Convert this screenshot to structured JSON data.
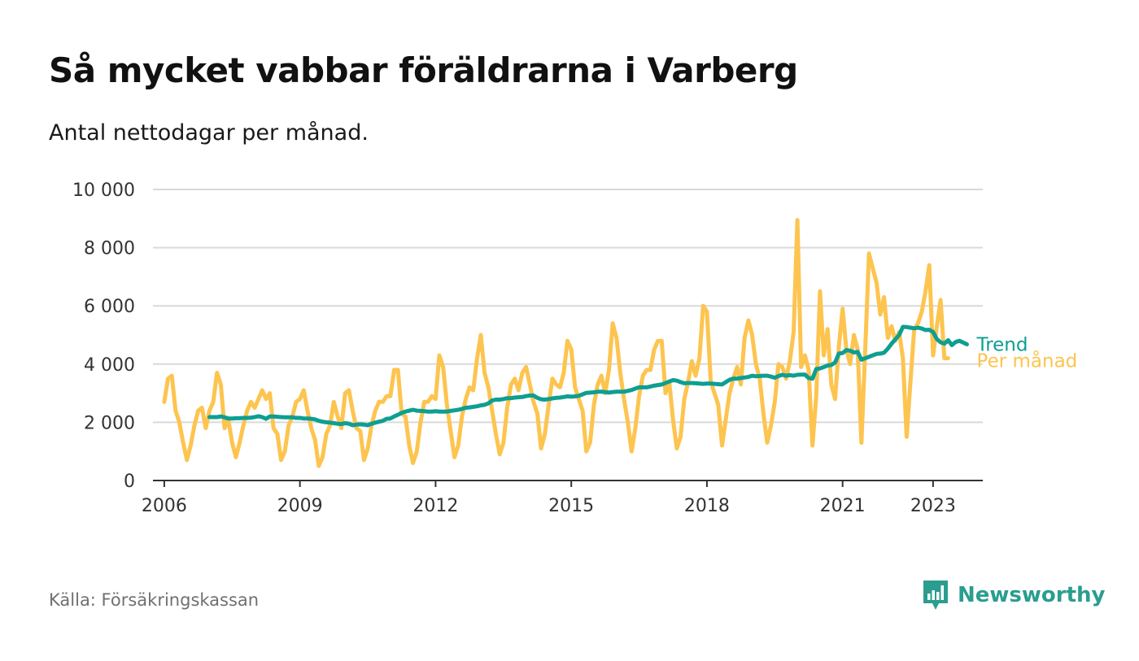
{
  "header": {
    "title": "Så mycket vabbar föräldrarna i Varberg",
    "subtitle": "Antal nettodagar per månad."
  },
  "footer": {
    "source": "Källa: Försäkringskassan",
    "brand": "Newsworthy"
  },
  "colors": {
    "monthly": "#fdc44f",
    "trend": "#0e9e92",
    "grid": "#d9d9d9",
    "axis": "#333333",
    "brand": "#2a9d8f"
  },
  "chart_data": {
    "type": "line",
    "title": "Så mycket vabbar föräldrarna i Varberg",
    "subtitle": "Antal nettodagar per månad.",
    "xlabel": "",
    "ylabel": "",
    "ylim": [
      0,
      10000
    ],
    "xlim": [
      2005.75,
      2024.1
    ],
    "grid": true,
    "y_ticks": [
      {
        "value": 0,
        "label": "0"
      },
      {
        "value": 2000,
        "label": "2 000"
      },
      {
        "value": 4000,
        "label": "4 000"
      },
      {
        "value": 6000,
        "label": "6 000"
      },
      {
        "value": 8000,
        "label": "8 000"
      },
      {
        "value": 10000,
        "label": "10 000"
      }
    ],
    "x_ticks": [
      {
        "value": 2006,
        "label": "2006"
      },
      {
        "value": 2009,
        "label": "2009"
      },
      {
        "value": 2012,
        "label": "2012"
      },
      {
        "value": 2015,
        "label": "2015"
      },
      {
        "value": 2018,
        "label": "2018"
      },
      {
        "value": 2021,
        "label": "2021"
      },
      {
        "value": 2023,
        "label": "2023"
      }
    ],
    "series": [
      {
        "name": "Per månad",
        "color": "#fdc44f",
        "start_year": 2006,
        "values": [
          2700,
          3500,
          3600,
          2400,
          2000,
          1300,
          700,
          1200,
          1900,
          2400,
          2500,
          1800,
          2400,
          2700,
          3700,
          3300,
          1800,
          2100,
          1300,
          800,
          1300,
          1900,
          2400,
          2700,
          2500,
          2800,
          3100,
          2800,
          3000,
          1800,
          1600,
          700,
          1000,
          1900,
          2200,
          2700,
          2800,
          3100,
          2400,
          1800,
          1400,
          500,
          800,
          1600,
          1900,
          2700,
          2200,
          1800,
          3000,
          3100,
          2400,
          1800,
          1700,
          700,
          1100,
          1900,
          2400,
          2700,
          2700,
          2900,
          2900,
          3800,
          3800,
          2300,
          2200,
          1200,
          600,
          1000,
          2000,
          2700,
          2700,
          2900,
          2800,
          4300,
          3900,
          2600,
          1700,
          800,
          1200,
          2200,
          2800,
          3200,
          3100,
          4200,
          5000,
          3700,
          3200,
          2400,
          1600,
          900,
          1300,
          2500,
          3300,
          3500,
          3100,
          3700,
          3900,
          3300,
          2700,
          2300,
          1100,
          1600,
          2600,
          3500,
          3300,
          3200,
          3700,
          4800,
          4500,
          3200,
          2800,
          2400,
          1000,
          1300,
          2600,
          3300,
          3600,
          3000,
          3800,
          5400,
          4900,
          3700,
          2800,
          2000,
          1000,
          1800,
          2900,
          3600,
          3800,
          3800,
          4500,
          4800,
          4800,
          3000,
          3400,
          2100,
          1100,
          1500,
          2800,
          3400,
          4100,
          3600,
          4200,
          6000,
          5800,
          3400,
          3000,
          2600,
          1200,
          2100,
          3000,
          3500,
          3900,
          3300,
          4900,
          5500,
          5000,
          4000,
          3500,
          2300,
          1300,
          1900,
          2700,
          4000,
          3900,
          3500,
          4100,
          5100,
          8950,
          3900,
          4300,
          3800,
          1200,
          2900,
          6500,
          4300,
          5200,
          3300,
          2800,
          4600,
          5900,
          4500,
          4000,
          5000,
          4500,
          1300,
          4500,
          7800,
          7300,
          6800,
          5700,
          6300,
          4900,
          5300,
          4800,
          5100,
          4200,
          1500,
          3400,
          5200,
          5400,
          5800,
          6500,
          7400,
          4300,
          5300,
          6200,
          4200,
          4200
        ]
      },
      {
        "name": "Trend",
        "color": "#0e9e92",
        "start_year": 2007,
        "values": [
          2180,
          2180,
          2180,
          2200,
          2170,
          2130,
          2130,
          2140,
          2140,
          2150,
          2150,
          2160,
          2180,
          2210,
          2180,
          2120,
          2200,
          2200,
          2190,
          2180,
          2170,
          2170,
          2170,
          2150,
          2150,
          2130,
          2130,
          2120,
          2100,
          2050,
          2020,
          2000,
          1990,
          1970,
          1950,
          1940,
          1970,
          1950,
          1900,
          1920,
          1930,
          1920,
          1900,
          1950,
          1990,
          2020,
          2050,
          2120,
          2130,
          2200,
          2260,
          2320,
          2370,
          2400,
          2430,
          2400,
          2390,
          2380,
          2370,
          2370,
          2380,
          2370,
          2370,
          2370,
          2390,
          2410,
          2430,
          2460,
          2500,
          2510,
          2530,
          2550,
          2580,
          2600,
          2650,
          2750,
          2780,
          2780,
          2800,
          2830,
          2830,
          2850,
          2860,
          2870,
          2900,
          2920,
          2920,
          2840,
          2790,
          2780,
          2800,
          2820,
          2840,
          2850,
          2870,
          2890,
          2880,
          2890,
          2910,
          2960,
          3010,
          3020,
          3030,
          3050,
          3050,
          3040,
          3020,
          3040,
          3050,
          3050,
          3050,
          3080,
          3110,
          3160,
          3200,
          3200,
          3200,
          3230,
          3260,
          3280,
          3300,
          3350,
          3400,
          3450,
          3430,
          3380,
          3340,
          3350,
          3350,
          3340,
          3330,
          3320,
          3330,
          3330,
          3320,
          3310,
          3300,
          3380,
          3460,
          3500,
          3500,
          3520,
          3540,
          3560,
          3600,
          3580,
          3590,
          3600,
          3600,
          3570,
          3530,
          3590,
          3630,
          3600,
          3620,
          3600,
          3630,
          3640,
          3640,
          3520,
          3500,
          3830,
          3850,
          3900,
          3950,
          3970,
          4050,
          4360,
          4380,
          4480,
          4460,
          4400,
          4420,
          4150,
          4200,
          4250,
          4300,
          4350,
          4360,
          4390,
          4530,
          4700,
          4850,
          5000,
          5280,
          5270,
          5250,
          5230,
          5250,
          5220,
          5170,
          5180,
          5100,
          4860,
          4750,
          4700,
          4820,
          4650,
          4760,
          4800,
          4740,
          4680
        ]
      }
    ]
  }
}
